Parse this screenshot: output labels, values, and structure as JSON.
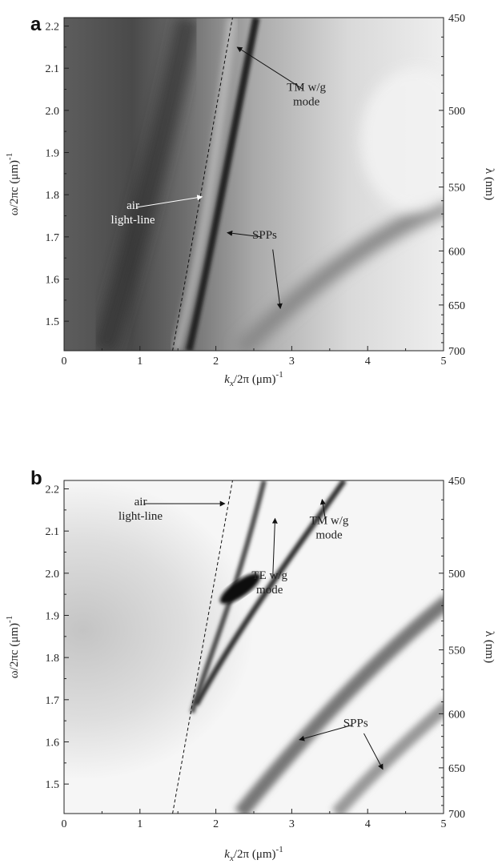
{
  "chart_data": [
    {
      "panel_label": "a",
      "type": "heatmap",
      "x_ticks": [
        0,
        1,
        2,
        3,
        4,
        5
      ],
      "y_ticks": [
        1.5,
        1.6,
        1.7,
        1.8,
        1.9,
        2.0,
        2.1,
        2.2
      ],
      "y_tick_labels": [
        "1.5",
        "1.6",
        "1.7",
        "1.8",
        "1.9",
        "2.0",
        "2.1",
        "2.2"
      ],
      "xlim": [
        0,
        5
      ],
      "ylim": [
        1.43,
        2.22
      ],
      "right_axis_label": "λ (nm)",
      "right_ticks": [
        450,
        500,
        550,
        600,
        650,
        700
      ],
      "lightline": [
        [
          1.43,
          1.43
        ],
        [
          2.22,
          2.22
        ]
      ],
      "annotations": [
        {
          "text": "TM w/g",
          "text2": "mode",
          "tx": 3.15,
          "ty": 2.05,
          "ax": 2.28,
          "ay": 2.15,
          "tone": "dark"
        },
        {
          "text": "air",
          "text2": "light-line",
          "tx": 0.95,
          "ty": 1.77,
          "ax": 1.82,
          "ay": 1.795,
          "tone": "light"
        },
        {
          "text": "SPPs",
          "text2": "",
          "tx": 2.6,
          "ty": 1.7,
          "ax": 2.15,
          "ay": 1.71,
          "tone": "dark"
        },
        {
          "text": "",
          "text2": "",
          "tx": 2.75,
          "ty": 1.67,
          "ax": 2.85,
          "ay": 1.53,
          "tone": "dark"
        }
      ]
    },
    {
      "panel_label": "b",
      "type": "heatmap",
      "x_ticks": [
        0,
        1,
        2,
        3,
        4,
        5
      ],
      "y_ticks": [
        1.5,
        1.6,
        1.7,
        1.8,
        1.9,
        2.0,
        2.1,
        2.2
      ],
      "y_tick_labels": [
        "1.5",
        "1.6",
        "1.7",
        "1.8",
        "1.9",
        "2.0",
        "2.1",
        "2.2"
      ],
      "xlim": [
        0,
        5
      ],
      "ylim": [
        1.43,
        2.22
      ],
      "right_axis_label": "λ (nm)",
      "right_ticks": [
        450,
        500,
        550,
        600,
        650,
        700
      ],
      "lightline": [
        [
          1.43,
          1.43
        ],
        [
          2.22,
          2.22
        ]
      ],
      "annotations": [
        {
          "text": "air",
          "text2": "light-line",
          "tx": 1.05,
          "ty": 2.165,
          "ax": 2.12,
          "ay": 2.165,
          "tone": "dark"
        },
        {
          "text": "TM w/g",
          "text2": "mode",
          "tx": 3.45,
          "ty": 2.12,
          "ax": 3.4,
          "ay": 2.175,
          "tone": "dark"
        },
        {
          "text": "TE w/g",
          "text2": "mode",
          "tx": 2.75,
          "ty": 1.99,
          "ax": 2.78,
          "ay": 2.13,
          "tone": "dark"
        },
        {
          "text": "SPPs",
          "text2": "",
          "tx": 3.8,
          "ty": 1.64,
          "ax": 3.1,
          "ay": 1.605,
          "tone": "dark"
        },
        {
          "text": "",
          "text2": "",
          "tx": 3.95,
          "ty": 1.62,
          "ax": 4.2,
          "ay": 1.535,
          "tone": "dark"
        }
      ]
    }
  ],
  "labels": {
    "a": "a",
    "b": "b",
    "ylabel": "ω/2πc (μm)",
    "ylabel_exp": "-1",
    "xlabel_k": "k",
    "xlabel_sub": "x",
    "xlabel_rest": "/2π (μm)",
    "xlabel_exp": "-1",
    "right_label": "λ (nm)"
  }
}
